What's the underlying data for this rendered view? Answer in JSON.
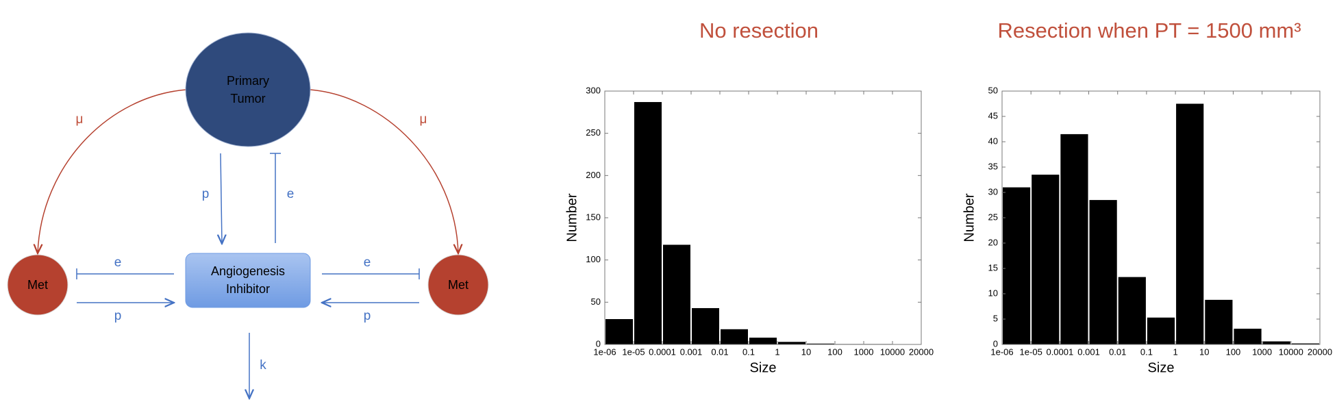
{
  "diagram": {
    "nodes": [
      {
        "lines": [
          "Primary",
          "Tumor"
        ]
      },
      {
        "lines": [
          "Met"
        ]
      },
      {
        "lines": [
          "Angiogenesis",
          "Inhibitor"
        ]
      },
      {
        "lines": [
          "Met"
        ]
      }
    ],
    "edges": [
      "μ",
      "μ",
      "p",
      "e",
      "e",
      "p",
      "e",
      "p",
      "k"
    ]
  },
  "chart_data": [
    {
      "type": "histogram",
      "title": "No resection",
      "xlabel": "Size",
      "ylabel": "Number",
      "bins": [
        1e-06,
        1e-05,
        0.0001,
        0.001,
        0.01,
        0.1,
        1,
        10,
        100,
        1000,
        10000,
        20000
      ],
      "values": [
        30,
        287,
        118,
        43,
        18,
        8,
        3,
        1,
        0.5,
        0.5,
        0
      ],
      "color": "#000000",
      "xticks": [
        {
          "value": 1e-06,
          "label": "1e-06"
        },
        {
          "value": 1e-05,
          "label": "1e-05"
        },
        0.0001,
        0.001,
        0.01,
        0.1,
        1,
        10,
        100,
        1000,
        10000,
        20000
      ],
      "ylim": [
        0,
        300
      ],
      "yticks": [
        0,
        50,
        100,
        150,
        200,
        250,
        300
      ]
    },
    {
      "type": "histogram",
      "title": "Resection when PT = 1500 mm³",
      "xlabel": "Size",
      "ylabel": "Number",
      "bins": [
        1e-06,
        1e-05,
        0.0001,
        0.001,
        0.01,
        0.1,
        1,
        10,
        100,
        1000,
        10000,
        20000
      ],
      "values": [
        31,
        33.5,
        41.5,
        28.5,
        13.3,
        5.3,
        47.5,
        8.8,
        3.1,
        0.6,
        0.2
      ],
      "color": "#000000",
      "xticks": [
        {
          "value": 1e-06,
          "label": "1e-06"
        },
        {
          "value": 1e-05,
          "label": "1e-05"
        },
        0.0001,
        0.001,
        0.01,
        0.1,
        1,
        10,
        100,
        1000,
        10000,
        20000
      ],
      "ylim": [
        0,
        50
      ],
      "yticks": [
        0,
        5,
        10,
        15,
        20,
        25,
        30,
        35,
        40,
        45,
        50
      ]
    }
  ]
}
